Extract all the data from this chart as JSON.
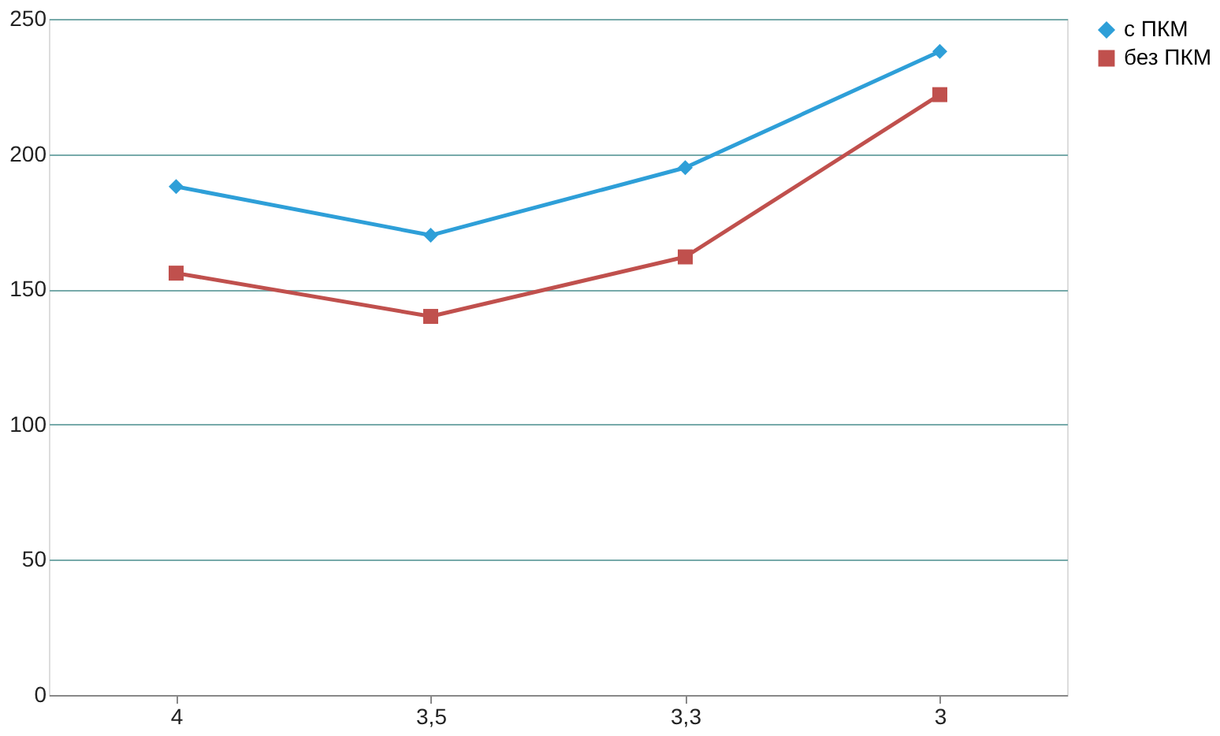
{
  "chart_data": {
    "type": "line",
    "categories": [
      "4",
      "3,5",
      "3,3",
      "3"
    ],
    "series": [
      {
        "name": "с ПКМ",
        "color": "#2e9fd8",
        "marker": "diamond",
        "values": [
          188,
          170,
          195,
          238
        ]
      },
      {
        "name": "без ПКМ",
        "color": "#c0504d",
        "marker": "square",
        "values": [
          156,
          140,
          162,
          222
        ]
      }
    ],
    "ylim": [
      0,
      250
    ],
    "yticks": [
      0,
      50,
      100,
      150,
      200,
      250
    ],
    "grid": "y",
    "legend": "right",
    "line_style": "solid"
  }
}
